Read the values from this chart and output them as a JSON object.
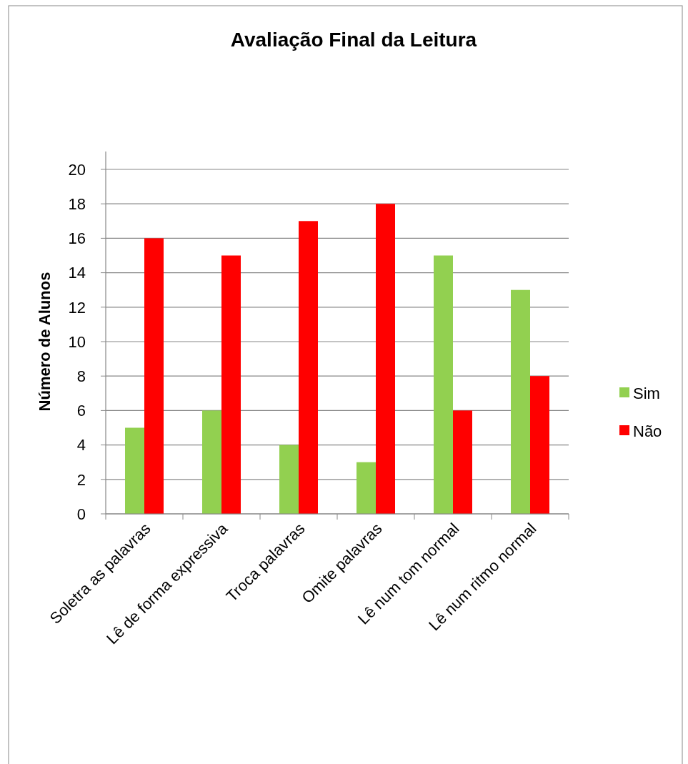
{
  "chart_data": {
    "type": "bar",
    "title": "Avaliação Final da Leitura",
    "ylabel": "Número de Alunos",
    "categories": [
      "Soletra as palavras",
      "Lê de forma expressiva",
      "Troca palavras",
      "Omite palavras",
      "Lê num tom normal",
      "Lê num ritmo normal"
    ],
    "series": [
      {
        "name": "Sim",
        "color": "#92d050",
        "values": [
          5,
          6,
          4,
          3,
          15,
          13
        ]
      },
      {
        "name": "Não",
        "color": "#ff0000",
        "values": [
          16,
          15,
          17,
          18,
          6,
          8
        ]
      }
    ],
    "ylim": [
      0,
      20
    ],
    "yticks": [
      0,
      2,
      4,
      6,
      8,
      10,
      12,
      14,
      16,
      18,
      20
    ],
    "grid": "y",
    "legend": "right"
  }
}
